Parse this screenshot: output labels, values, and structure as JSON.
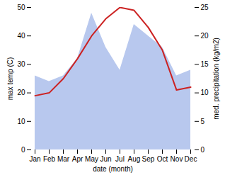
{
  "chart_data": {
    "type": "line",
    "categories": [
      "Jan",
      "Feb",
      "Mar",
      "Apr",
      "May",
      "Jun",
      "Jul",
      "Aug",
      "Sep",
      "Oct",
      "Nov",
      "Dec"
    ],
    "xlabel": "date (month)",
    "ylabel": "max temp (C)",
    "y2label": "med. precipitation (kg/m2)",
    "ylim": [
      0,
      50
    ],
    "yticks": [
      0,
      10,
      20,
      30,
      40,
      50
    ],
    "y2lim": [
      0,
      25
    ],
    "y2ticks": [
      0,
      5,
      10,
      15,
      20,
      25
    ],
    "series": [
      {
        "type": "area",
        "axis": "y2",
        "color": "#b8c8ee",
        "values": [
          13,
          12,
          13,
          16,
          24,
          18,
          14,
          22,
          20,
          18,
          13,
          14
        ]
      },
      {
        "type": "line",
        "color": "#cc2222",
        "values": [
          19,
          20,
          25,
          32,
          40,
          46,
          50,
          49,
          43,
          35,
          21,
          22
        ]
      }
    ]
  }
}
